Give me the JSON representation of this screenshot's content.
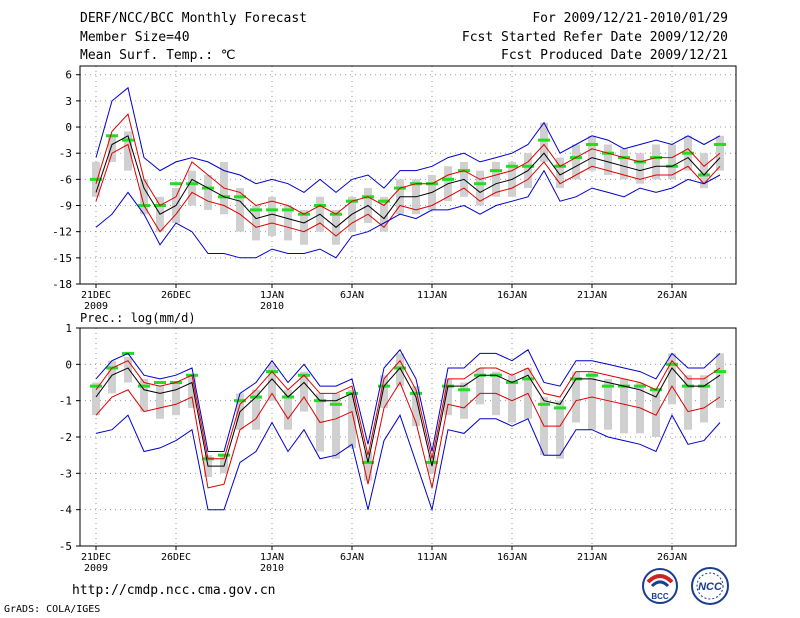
{
  "header": {
    "title": "DERF/NCC/BCC Monthly Forecast",
    "member_size": "Member Size=40",
    "variable": "Mean Surf. Temp.: ℃",
    "period": "For 2009/12/21-2010/01/29",
    "started": "Fcst Started Refer Date 2009/12/20",
    "produced": "Fcst Produced Date 2009/12/21"
  },
  "footer": {
    "url": "http://cmdp.ncc.cma.gov.cn",
    "credit": "GrADS: COLA/IGES"
  },
  "logos": {
    "bcc": "BCC",
    "ncc": "NCC"
  },
  "colors": {
    "ensemble_mean": "#000000",
    "red_bound": "#e00000",
    "blue_bound": "#0000cc",
    "green_marker": "#22dd22",
    "gray_bar": "#d0d0d0",
    "grid": "#999999"
  },
  "chart_data": [
    {
      "type": "line",
      "title": "Mean Surf. Temp.: ℃",
      "x_start_day": 21,
      "x_count": 40,
      "xlim": [
        0,
        40
      ],
      "xtick_labels": [
        "21DEC\n2009",
        "26DEC",
        "1JAN\n2010",
        "6JAN",
        "11JAN",
        "16JAN",
        "21JAN",
        "26JAN"
      ],
      "xtick_positions": [
        0,
        5,
        11,
        16,
        21,
        26,
        31,
        36
      ],
      "ylim": [
        -18,
        7
      ],
      "yticks": [
        -18,
        -15,
        -12,
        -9,
        -6,
        -3,
        0,
        3,
        6
      ],
      "grid": true,
      "series": [
        {
          "name": "ensemble_mean",
          "values": [
            -7.5,
            -2,
            -1,
            -7,
            -10,
            -9,
            -6,
            -7,
            -8,
            -8.5,
            -10.5,
            -10,
            -10.5,
            -11,
            -10,
            -11.5,
            -10,
            -9,
            -10.5,
            -8,
            -8,
            -7.5,
            -6.5,
            -6,
            -7.5,
            -6.5,
            -6,
            -5,
            -3,
            -5.5,
            -4.5,
            -3.5,
            -4,
            -4.5,
            -5,
            -4.5,
            -4.5,
            -3.5,
            -5.5,
            -3.5
          ]
        },
        {
          "name": "upper_red",
          "values": [
            -6.5,
            -0.5,
            1.5,
            -6,
            -9,
            -8,
            -4,
            -5.5,
            -7,
            -7.5,
            -9,
            -8.5,
            -9,
            -10,
            -9,
            -10,
            -8.5,
            -8,
            -9,
            -7,
            -6.5,
            -6.5,
            -5.5,
            -5,
            -6,
            -5.5,
            -5,
            -4,
            -2,
            -4.5,
            -3.5,
            -2.5,
            -3,
            -3.5,
            -4,
            -3.5,
            -3.5,
            -2.5,
            -4.5,
            -3
          ]
        },
        {
          "name": "lower_red",
          "values": [
            -8.5,
            -3,
            -2,
            -9,
            -12,
            -10,
            -7.5,
            -8.5,
            -9,
            -10,
            -11.5,
            -11,
            -11.5,
            -12,
            -11,
            -12.5,
            -11,
            -10,
            -11.5,
            -9,
            -9.5,
            -9,
            -8,
            -7,
            -8.5,
            -7.5,
            -7,
            -6,
            -4,
            -6.5,
            -5.5,
            -4.5,
            -5,
            -5.5,
            -6,
            -5.5,
            -5.5,
            -4.5,
            -6.5,
            -4.5
          ]
        },
        {
          "name": "upper_blue",
          "values": [
            -3.5,
            3,
            4.5,
            -3.5,
            -5,
            -4,
            -3.5,
            -4,
            -5,
            -5.5,
            -6.5,
            -6,
            -6.5,
            -7.5,
            -6,
            -7.5,
            -6,
            -5.5,
            -7,
            -5,
            -5,
            -4.5,
            -3.5,
            -3,
            -4,
            -3.5,
            -3,
            -2,
            0.5,
            -3,
            -2,
            -1,
            -1.5,
            -2.5,
            -2,
            -1.5,
            -2,
            -1,
            -2,
            -1
          ]
        },
        {
          "name": "lower_blue",
          "values": [
            -11.5,
            -10,
            -7.5,
            -10,
            -13.5,
            -11,
            -12,
            -14.5,
            -14.5,
            -15,
            -15,
            -14,
            -14.5,
            -14.5,
            -14,
            -15,
            -12.5,
            -12,
            -11,
            -10,
            -10.5,
            -9.5,
            -9.5,
            -9,
            -10,
            -9,
            -8.5,
            -8,
            -5,
            -8.5,
            -8,
            -7,
            -7.5,
            -8,
            -7,
            -7.5,
            -7,
            -6,
            -6.5,
            -5.5
          ]
        },
        {
          "name": "green_markers",
          "values": [
            -6,
            -1,
            -1.5,
            -9,
            -9,
            -6.5,
            -6.5,
            -7,
            -8,
            -8,
            -9.5,
            -9.5,
            -9.5,
            -10,
            -9,
            -10,
            -8.5,
            -8,
            -8.5,
            -7,
            -6.5,
            -6.5,
            -6,
            -5,
            -6.5,
            -5,
            -4.5,
            -4.5,
            -1.5,
            -4.5,
            -3.5,
            -2,
            -3,
            -3.5,
            -4,
            -3.5,
            -4.5,
            -3,
            -5.5,
            -2
          ]
        }
      ],
      "gray_bars": [
        [
          -8,
          -4
        ],
        [
          -4,
          -1
        ],
        [
          -5,
          -0.5
        ],
        [
          -10,
          -6
        ],
        [
          -12,
          -8
        ],
        [
          -11,
          -7
        ],
        [
          -9,
          -5
        ],
        [
          -9.5,
          -5.5
        ],
        [
          -10,
          -4
        ],
        [
          -12,
          -7
        ],
        [
          -13,
          -9
        ],
        [
          -12.5,
          -8
        ],
        [
          -13,
          -9
        ],
        [
          -13.5,
          -9.5
        ],
        [
          -12,
          -8
        ],
        [
          -13.5,
          -9.5
        ],
        [
          -12,
          -8
        ],
        [
          -11,
          -7
        ],
        [
          -12,
          -8
        ],
        [
          -10,
          -6
        ],
        [
          -10,
          -6
        ],
        [
          -9.5,
          -5.5
        ],
        [
          -8.5,
          -4.5
        ],
        [
          -8,
          -4
        ],
        [
          -9,
          -5
        ],
        [
          -8,
          -4
        ],
        [
          -8,
          -4
        ],
        [
          -7,
          -3
        ],
        [
          -4,
          0.5
        ],
        [
          -7,
          -3.5
        ],
        [
          -6,
          -2
        ],
        [
          -5,
          -1
        ],
        [
          -5.5,
          -2
        ],
        [
          -6,
          -2.5
        ],
        [
          -6.5,
          -3
        ],
        [
          -6,
          -2
        ],
        [
          -6,
          -2
        ],
        [
          -5,
          -1
        ],
        [
          -7,
          -3
        ],
        [
          -5,
          -1
        ]
      ]
    },
    {
      "type": "line",
      "title": "Prec.: log(mm/d)",
      "x_start_day": 21,
      "x_count": 40,
      "xlim": [
        0,
        40
      ],
      "xtick_labels": [
        "21DEC\n2009",
        "26DEC",
        "1JAN\n2010",
        "6JAN",
        "11JAN",
        "16JAN",
        "21JAN",
        "26JAN"
      ],
      "xtick_positions": [
        0,
        5,
        11,
        16,
        21,
        26,
        31,
        36
      ],
      "ylim": [
        -5,
        1
      ],
      "yticks": [
        -5,
        -4,
        -3,
        -2,
        -1,
        0,
        1
      ],
      "grid": true,
      "series": [
        {
          "name": "ensemble_mean",
          "values": [
            -0.9,
            -0.3,
            -0.1,
            -0.7,
            -0.8,
            -0.7,
            -0.5,
            -2.8,
            -2.8,
            -1.3,
            -0.9,
            -0.4,
            -0.9,
            -0.5,
            -1.0,
            -1.0,
            -0.8,
            -2.7,
            -0.6,
            -0.1,
            -0.9,
            -2.8,
            -0.6,
            -0.6,
            -0.3,
            -0.3,
            -0.5,
            -0.3,
            -1.0,
            -1.1,
            -0.4,
            -0.4,
            -0.5,
            -0.6,
            -0.7,
            -0.9,
            -0.1,
            -0.6,
            -0.6,
            -0.3
          ]
        },
        {
          "name": "upper_red",
          "values": [
            -0.7,
            -0.1,
            0.1,
            -0.5,
            -0.6,
            -0.5,
            -0.3,
            -2.6,
            -2.6,
            -1.1,
            -0.7,
            -0.2,
            -0.7,
            -0.3,
            -0.8,
            -0.8,
            -0.6,
            -2.5,
            -0.4,
            0.1,
            -0.7,
            -2.6,
            -0.4,
            -0.4,
            -0.1,
            -0.1,
            -0.3,
            -0.1,
            -0.8,
            -0.9,
            -0.2,
            -0.2,
            -0.3,
            -0.4,
            -0.5,
            -0.7,
            0.1,
            -0.4,
            -0.4,
            -0.1
          ]
        },
        {
          "name": "lower_red",
          "values": [
            -1.4,
            -0.9,
            -0.7,
            -1.3,
            -1.2,
            -1.1,
            -0.9,
            -3.4,
            -3.3,
            -1.8,
            -1.5,
            -0.8,
            -1.5,
            -0.9,
            -1.6,
            -1.5,
            -1.3,
            -3.3,
            -1.2,
            -0.5,
            -1.6,
            -3.4,
            -1.1,
            -1.2,
            -0.8,
            -0.8,
            -1.0,
            -0.8,
            -1.7,
            -1.7,
            -1.0,
            -0.9,
            -1.0,
            -1.1,
            -1.2,
            -1.4,
            -0.6,
            -1.3,
            -1.2,
            -0.9
          ]
        },
        {
          "name": "upper_blue",
          "values": [
            -0.4,
            0.1,
            0.3,
            -0.3,
            -0.4,
            -0.3,
            -0.1,
            -2.4,
            -2.4,
            -0.8,
            -0.5,
            0.1,
            -0.5,
            0.0,
            -0.6,
            -0.6,
            -0.4,
            -2.2,
            -0.1,
            0.4,
            -0.4,
            -2.4,
            -0.1,
            -0.1,
            0.3,
            0.3,
            0.1,
            0.4,
            -0.5,
            -0.6,
            0.1,
            0.1,
            0.0,
            -0.1,
            -0.2,
            -0.4,
            0.3,
            -0.1,
            -0.1,
            0.3
          ]
        },
        {
          "name": "lower_blue",
          "values": [
            -1.9,
            -1.8,
            -1.4,
            -2.4,
            -2.3,
            -2.1,
            -1.8,
            -4.0,
            -4.0,
            -2.7,
            -2.4,
            -1.6,
            -2.4,
            -1.8,
            -2.6,
            -2.5,
            -2.2,
            -4.0,
            -2.1,
            -1.4,
            -2.7,
            -4.0,
            -1.8,
            -1.9,
            -1.5,
            -1.5,
            -1.7,
            -1.5,
            -2.5,
            -2.5,
            -1.8,
            -1.8,
            -2.0,
            -2.1,
            -2.2,
            -2.4,
            -1.4,
            -2.2,
            -2.1,
            -1.6
          ]
        },
        {
          "name": "green_markers",
          "values": [
            -0.6,
            -0.1,
            0.3,
            -0.6,
            -0.5,
            -0.5,
            -0.3,
            -2.6,
            -2.5,
            -1.0,
            -0.9,
            -0.2,
            -0.9,
            -0.3,
            -1.0,
            -1.1,
            -0.8,
            -2.7,
            -0.6,
            -0.1,
            -0.8,
            -2.7,
            -0.6,
            -0.7,
            -0.3,
            -0.3,
            -0.5,
            -0.4,
            -1.1,
            -1.2,
            -0.4,
            -0.3,
            -0.6,
            -0.6,
            -0.6,
            -0.7,
            0.0,
            -0.6,
            -0.6,
            -0.2
          ]
        }
      ],
      "gray_bars": [
        [
          -1.4,
          -0.5
        ],
        [
          -0.8,
          0.1
        ],
        [
          -0.5,
          0.2
        ],
        [
          -1.3,
          -0.4
        ],
        [
          -1.5,
          -0.6
        ],
        [
          -1.4,
          -0.5
        ],
        [
          -1.2,
          -0.3
        ],
        [
          -3.1,
          -2.5
        ],
        [
          -3.0,
          -2.5
        ],
        [
          -1.8,
          -0.8
        ],
        [
          -1.8,
          -0.7
        ],
        [
          -1.0,
          0.0
        ],
        [
          -1.8,
          -0.7
        ],
        [
          -1.3,
          -0.2
        ],
        [
          -2.4,
          -0.8
        ],
        [
          -2.6,
          -0.8
        ],
        [
          -2.3,
          -0.7
        ],
        [
          -3.2,
          -2.4
        ],
        [
          -1.2,
          -0.3
        ],
        [
          -0.6,
          0.3
        ],
        [
          -1.7,
          -0.6
        ],
        [
          -3.0,
          -2.5
        ],
        [
          -1.4,
          -0.4
        ],
        [
          -1.5,
          -0.5
        ],
        [
          -1.1,
          -0.1
        ],
        [
          -1.4,
          -0.2
        ],
        [
          -1.6,
          -0.3
        ],
        [
          -1.5,
          -0.1
        ],
        [
          -2.5,
          -0.9
        ],
        [
          -2.6,
          -1.0
        ],
        [
          -1.6,
          -0.2
        ],
        [
          -1.8,
          -0.2
        ],
        [
          -1.8,
          -0.4
        ],
        [
          -1.9,
          -0.4
        ],
        [
          -1.9,
          -0.5
        ],
        [
          -2.0,
          -0.7
        ],
        [
          -1.1,
          0.3
        ],
        [
          -1.8,
          -0.3
        ],
        [
          -1.6,
          -0.3
        ],
        [
          -1.2,
          0.3
        ]
      ]
    }
  ]
}
